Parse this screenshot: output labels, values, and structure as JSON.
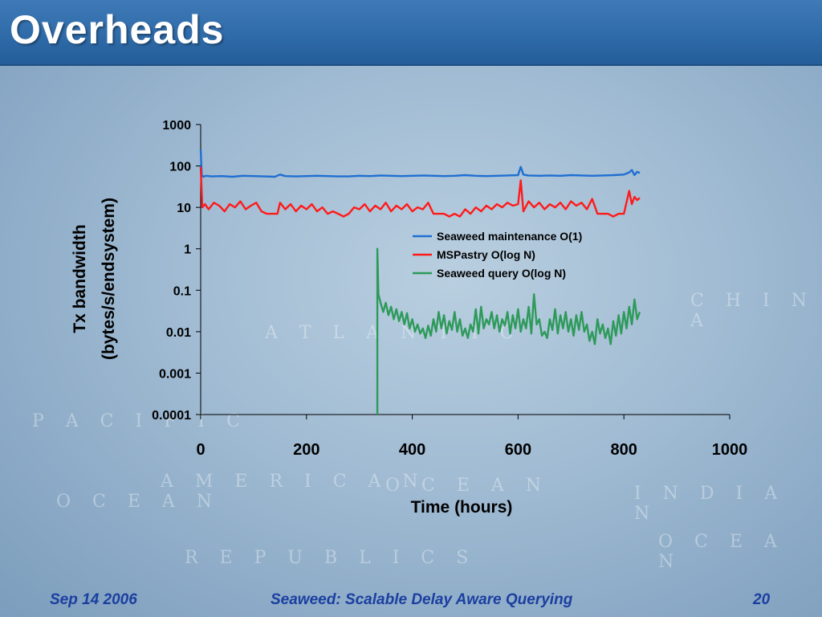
{
  "slide": {
    "title": "Overheads",
    "footer_left": "Sep 14 2006",
    "footer_center": "Seaweed: Scalable Delay Aware Querying",
    "footer_right": "20"
  },
  "colors": {
    "title_bar": "#2e6aa8",
    "footer_text": "#1b3fa0",
    "series_blue": "#1f6fd1",
    "series_red": "#ff1a1a",
    "series_green": "#2e9a5a"
  },
  "chart_data": {
    "type": "line",
    "xlabel": "Time (hours)",
    "ylabel_line1": "Tx bandwidth",
    "ylabel_line2": "(bytes/s/endsystem)",
    "xlim": [
      0,
      1000
    ],
    "ylim": [
      0.0001,
      1000
    ],
    "yscale": "log",
    "x_ticks": [
      "0",
      "200",
      "400",
      "600",
      "800",
      "1000"
    ],
    "y_ticks": [
      "1000",
      "100",
      "10",
      "1",
      "0.1",
      "0.01",
      "0.001",
      "0.0001"
    ],
    "legend_position": "center-right",
    "grid": false,
    "series": [
      {
        "name": "Seaweed maintenance O(1)",
        "color": "#1f6fd1",
        "x": [
          0,
          2,
          5,
          10,
          20,
          40,
          60,
          80,
          100,
          120,
          140,
          150,
          160,
          180,
          200,
          220,
          240,
          260,
          280,
          300,
          320,
          340,
          360,
          380,
          400,
          420,
          440,
          460,
          480,
          500,
          520,
          540,
          560,
          580,
          600,
          605,
          610,
          615,
          620,
          640,
          660,
          680,
          700,
          720,
          740,
          760,
          780,
          800,
          810,
          815,
          820,
          825,
          830
        ],
        "y": [
          250,
          60,
          55,
          58,
          56,
          57,
          55,
          58,
          57,
          56,
          55,
          62,
          57,
          56,
          57,
          58,
          57,
          56,
          56,
          58,
          57,
          59,
          58,
          57,
          58,
          59,
          58,
          57,
          58,
          60,
          58,
          57,
          58,
          59,
          60,
          95,
          62,
          60,
          59,
          58,
          59,
          58,
          60,
          59,
          58,
          59,
          60,
          62,
          70,
          80,
          60,
          72,
          68
        ]
      },
      {
        "name": "MSPastry O(log N)",
        "color": "#ff1a1a",
        "x": [
          0,
          3,
          8,
          15,
          25,
          35,
          45,
          55,
          65,
          75,
          85,
          95,
          105,
          115,
          125,
          135,
          145,
          150,
          160,
          170,
          180,
          190,
          200,
          210,
          220,
          230,
          240,
          250,
          260,
          270,
          280,
          290,
          300,
          310,
          320,
          330,
          340,
          350,
          360,
          370,
          380,
          390,
          400,
          410,
          420,
          430,
          440,
          450,
          460,
          470,
          480,
          490,
          500,
          510,
          520,
          530,
          540,
          550,
          560,
          570,
          580,
          590,
          600,
          605,
          610,
          620,
          630,
          640,
          650,
          660,
          670,
          680,
          690,
          700,
          710,
          720,
          730,
          740,
          750,
          760,
          770,
          780,
          790,
          800,
          810,
          815,
          820,
          825,
          830
        ],
        "y": [
          95,
          10,
          12,
          9,
          13,
          11,
          8,
          12,
          10,
          14,
          9,
          11,
          13,
          8,
          7,
          7,
          7,
          13,
          9,
          12,
          8,
          11,
          9,
          12,
          8,
          10,
          7,
          8,
          7,
          6,
          7,
          10,
          9,
          12,
          8,
          11,
          9,
          13,
          8,
          11,
          9,
          12,
          8,
          10,
          9,
          13,
          7,
          7,
          7,
          6,
          7,
          6,
          9,
          7,
          10,
          8,
          11,
          9,
          12,
          10,
          13,
          11,
          12,
          45,
          8,
          14,
          10,
          13,
          9,
          12,
          10,
          13,
          9,
          14,
          11,
          13,
          9,
          16,
          7,
          7,
          7,
          6,
          7,
          7,
          25,
          12,
          18,
          15,
          17
        ]
      },
      {
        "name": "Seaweed query O(log N)",
        "color": "#2e9a5a",
        "x": [
          334,
          334,
          336,
          340,
          345,
          350,
          355,
          360,
          365,
          370,
          375,
          380,
          385,
          390,
          395,
          400,
          405,
          410,
          415,
          420,
          425,
          430,
          435,
          440,
          445,
          450,
          455,
          460,
          465,
          470,
          475,
          480,
          485,
          490,
          495,
          500,
          505,
          510,
          515,
          520,
          525,
          530,
          535,
          540,
          545,
          550,
          555,
          560,
          565,
          570,
          575,
          580,
          585,
          590,
          595,
          600,
          605,
          610,
          615,
          620,
          625,
          630,
          635,
          640,
          645,
          650,
          655,
          660,
          665,
          670,
          675,
          680,
          685,
          690,
          695,
          700,
          705,
          710,
          715,
          720,
          725,
          730,
          735,
          740,
          745,
          750,
          755,
          760,
          765,
          770,
          775,
          780,
          785,
          790,
          795,
          800,
          805,
          810,
          815,
          820,
          825,
          830
        ],
        "y": [
          0.0001,
          1.0,
          0.08,
          0.05,
          0.03,
          0.05,
          0.025,
          0.04,
          0.02,
          0.035,
          0.018,
          0.03,
          0.015,
          0.028,
          0.012,
          0.02,
          0.01,
          0.015,
          0.009,
          0.012,
          0.007,
          0.014,
          0.008,
          0.02,
          0.01,
          0.03,
          0.012,
          0.025,
          0.009,
          0.018,
          0.011,
          0.03,
          0.01,
          0.02,
          0.008,
          0.012,
          0.007,
          0.015,
          0.01,
          0.035,
          0.009,
          0.04,
          0.012,
          0.02,
          0.015,
          0.03,
          0.012,
          0.025,
          0.01,
          0.02,
          0.014,
          0.03,
          0.009,
          0.025,
          0.012,
          0.035,
          0.01,
          0.02,
          0.012,
          0.04,
          0.009,
          0.08,
          0.015,
          0.02,
          0.008,
          0.01,
          0.007,
          0.02,
          0.011,
          0.035,
          0.009,
          0.025,
          0.012,
          0.03,
          0.01,
          0.02,
          0.008,
          0.025,
          0.011,
          0.03,
          0.01,
          0.015,
          0.006,
          0.01,
          0.005,
          0.02,
          0.009,
          0.015,
          0.007,
          0.012,
          0.005,
          0.018,
          0.008,
          0.025,
          0.009,
          0.03,
          0.012,
          0.04,
          0.015,
          0.06,
          0.02,
          0.03
        ]
      }
    ]
  }
}
